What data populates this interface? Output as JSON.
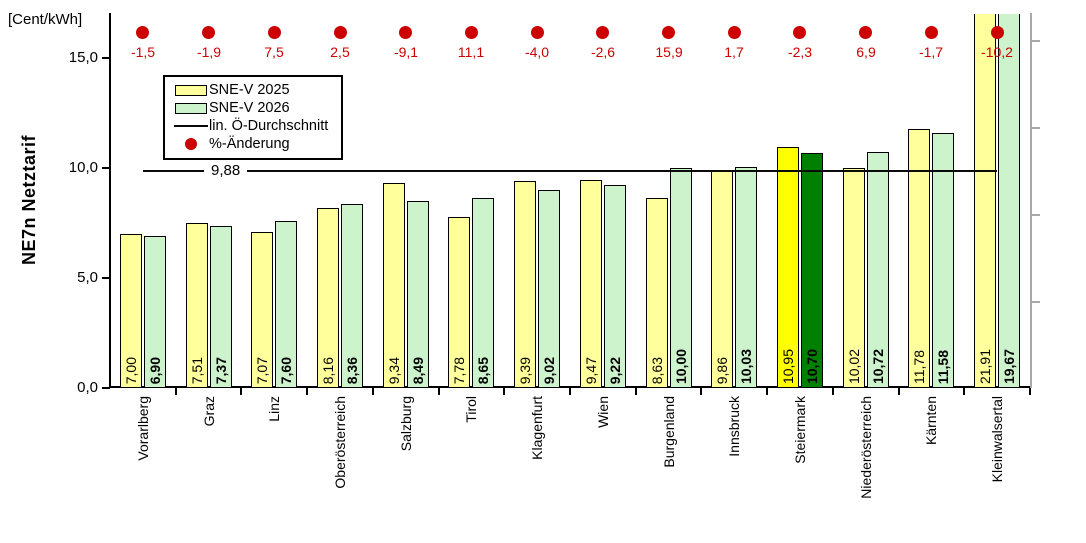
{
  "chart_data": {
    "type": "bar",
    "title": "",
    "unit_label": "[Cent/kWh]",
    "ylabel": "NE7n Netztarif",
    "ylim": [
      0,
      17
    ],
    "grid": false,
    "legend_position": "top-left-inside",
    "yticks": [
      {
        "value": 15,
        "label": "15,0"
      },
      {
        "value": 10,
        "label": "10,0"
      },
      {
        "value": 5,
        "label": "5,0"
      },
      {
        "value": 0,
        "label": "0,0"
      }
    ],
    "categories": [
      "Vorarlberg",
      "Graz",
      "Linz",
      "Oberösterreich",
      "Salzburg",
      "Tirol",
      "Klagenfurt",
      "Wien",
      "Burgenland",
      "Innsbruck",
      "Steiermark",
      "Niederösterreich",
      "Kärnten",
      "Kleinwalsertal"
    ],
    "series": [
      {
        "name": "SNE-V 2025",
        "color": "#FFFF9C",
        "highlight_color": "#FFFF00",
        "values": [
          7.0,
          7.51,
          7.07,
          8.16,
          9.34,
          7.78,
          9.39,
          9.47,
          8.63,
          9.86,
          10.95,
          10.02,
          11.78,
          21.91
        ],
        "labels": [
          "7,00",
          "7,51",
          "7,07",
          "8,16",
          "9,34",
          "7,78",
          "9,39",
          "9,47",
          "8,63",
          "9,86",
          "10,95",
          "10,02",
          "11,78",
          "21,91"
        ],
        "label_bold": false
      },
      {
        "name": "SNE-V 2026",
        "color": "#CCF3CC",
        "highlight_color": "#008000",
        "values": [
          6.9,
          7.37,
          7.6,
          8.36,
          8.49,
          8.65,
          9.02,
          9.22,
          10.0,
          10.03,
          10.7,
          10.72,
          11.58,
          19.67
        ],
        "labels": [
          "6,90",
          "7,37",
          "7,60",
          "8,36",
          "8,49",
          "8,65",
          "9,02",
          "9,22",
          "10,00",
          "10,03",
          "10,70",
          "10,72",
          "11,58",
          "19,67"
        ],
        "label_bold": true
      }
    ],
    "pct_change": {
      "name": "%-Änderung",
      "color": "#CC0000",
      "labels": [
        "-1,5",
        "-1,9",
        "7,5",
        "2,5",
        "-9,1",
        "11,1",
        "-4,0",
        "-2,6",
        "15,9",
        "1,7",
        "-2,3",
        "6,9",
        "-1,7",
        "-10,2"
      ]
    },
    "average_line": {
      "name": "lin. Ö-Durchschnitt",
      "value": 9.88,
      "label": "9,88",
      "color": "#0a0a0a"
    },
    "highlight_category": "Steiermark"
  },
  "legend": {
    "items": [
      {
        "label": "SNE-V 2025",
        "swatch": "rect-2025"
      },
      {
        "label": "SNE-V 2026",
        "swatch": "rect-2026"
      },
      {
        "label": "lin. Ö-Durchschnitt",
        "swatch": "line"
      },
      {
        "label": "%-Änderung",
        "swatch": "dot"
      }
    ]
  }
}
